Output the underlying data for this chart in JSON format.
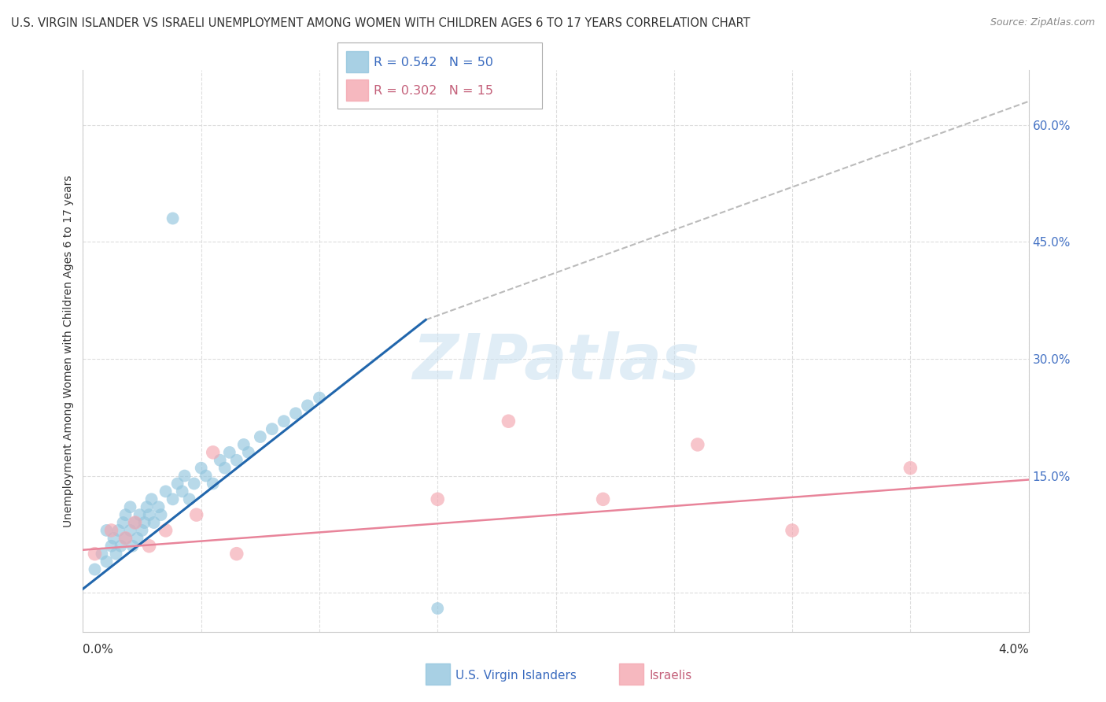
{
  "title": "U.S. VIRGIN ISLANDER VS ISRAELI UNEMPLOYMENT AMONG WOMEN WITH CHILDREN AGES 6 TO 17 YEARS CORRELATION CHART",
  "source": "Source: ZipAtlas.com",
  "ylabel": "Unemployment Among Women with Children Ages 6 to 17 years",
  "xlim": [
    0.0,
    4.0
  ],
  "ylim": [
    -5.0,
    67.0
  ],
  "yticks_right": [
    0.0,
    15.0,
    30.0,
    45.0,
    60.0
  ],
  "ytick_labels_right": [
    "",
    "15.0%",
    "30.0%",
    "45.0%",
    "60.0%"
  ],
  "blue_color": "#92c5de",
  "pink_color": "#f4a6b0",
  "blue_line_color": "#2166ac",
  "pink_line_color": "#e8849a",
  "gray_line_color": "#bbbbbb",
  "blue_scatter_x": [
    0.05,
    0.08,
    0.1,
    0.1,
    0.12,
    0.13,
    0.14,
    0.15,
    0.16,
    0.17,
    0.18,
    0.18,
    0.2,
    0.2,
    0.21,
    0.22,
    0.23,
    0.24,
    0.25,
    0.26,
    0.27,
    0.28,
    0.29,
    0.3,
    0.32,
    0.33,
    0.35,
    0.38,
    0.4,
    0.42,
    0.43,
    0.45,
    0.47,
    0.5,
    0.52,
    0.55,
    0.58,
    0.6,
    0.62,
    0.65,
    0.68,
    0.7,
    0.75,
    0.8,
    0.85,
    0.9,
    0.95,
    1.0,
    1.5,
    0.38
  ],
  "blue_scatter_y": [
    3.0,
    5.0,
    4.0,
    8.0,
    6.0,
    7.0,
    5.0,
    8.0,
    6.0,
    9.0,
    7.0,
    10.0,
    8.0,
    11.0,
    6.0,
    9.0,
    7.0,
    10.0,
    8.0,
    9.0,
    11.0,
    10.0,
    12.0,
    9.0,
    11.0,
    10.0,
    13.0,
    12.0,
    14.0,
    13.0,
    15.0,
    12.0,
    14.0,
    16.0,
    15.0,
    14.0,
    17.0,
    16.0,
    18.0,
    17.0,
    19.0,
    18.0,
    20.0,
    21.0,
    22.0,
    23.0,
    24.0,
    25.0,
    -2.0,
    48.0
  ],
  "pink_scatter_x": [
    0.05,
    0.12,
    0.18,
    0.22,
    0.28,
    0.35,
    0.48,
    0.55,
    0.65,
    1.5,
    1.8,
    2.2,
    2.6,
    3.0,
    3.5
  ],
  "pink_scatter_y": [
    5.0,
    8.0,
    7.0,
    9.0,
    6.0,
    8.0,
    10.0,
    18.0,
    5.0,
    12.0,
    22.0,
    12.0,
    19.0,
    8.0,
    16.0
  ],
  "blue_trend_x0": 0.0,
  "blue_trend_y0": 0.5,
  "blue_trend_x1": 1.45,
  "blue_trend_y1": 35.0,
  "gray_dash_x0": 1.45,
  "gray_dash_y0": 35.0,
  "gray_dash_x1": 4.0,
  "gray_dash_y1": 63.0,
  "pink_trend_x0": 0.0,
  "pink_trend_y0": 5.5,
  "pink_trend_x1": 4.0,
  "pink_trend_y1": 14.5,
  "watermark_text": "ZIPatlas",
  "background_color": "#ffffff",
  "grid_color": "#dddddd",
  "title_fontsize": 10.5,
  "source_fontsize": 9,
  "tick_label_fontsize": 11,
  "ylabel_fontsize": 10
}
